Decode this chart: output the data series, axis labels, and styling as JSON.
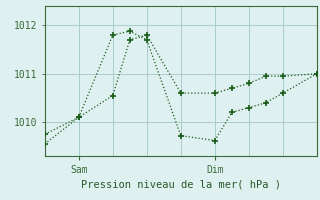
{
  "title": "",
  "xlabel": "Pression niveau de la mer( hPa )",
  "bg_color": "#dff0f0",
  "line_color": "#1a5c1a",
  "grid_color": "#aacccc",
  "axis_color": "#3a6a3a",
  "tick_label_color": "#2a5a2a",
  "ylim": [
    1009.3,
    1012.4
  ],
  "xlim": [
    0,
    16
  ],
  "yticks": [
    1010,
    1011,
    1012
  ],
  "ytick_labels": [
    "1010",
    "1011",
    "1012"
  ],
  "xtick_positions": [
    2,
    10
  ],
  "xtick_labels": [
    "Sam",
    "Dim"
  ],
  "series1_x": [
    0,
    2,
    4,
    5,
    6,
    8,
    10,
    11,
    12,
    13,
    14,
    16
  ],
  "series1_y": [
    1009.75,
    1010.1,
    1010.55,
    1011.7,
    1011.8,
    1010.6,
    1010.6,
    1010.7,
    1010.8,
    1010.95,
    1010.95,
    1011.0
  ],
  "series2_x": [
    0,
    2,
    4,
    5,
    6,
    8,
    10,
    11,
    12,
    13,
    14,
    16
  ],
  "series2_y": [
    1009.55,
    1010.1,
    1011.8,
    1011.88,
    1011.7,
    1009.72,
    1009.62,
    1010.2,
    1010.3,
    1010.4,
    1010.6,
    1011.0
  ],
  "grid_xticks": [
    0,
    2,
    4,
    6,
    8,
    10,
    12,
    14,
    16
  ],
  "fontsize_label": 7.5,
  "fontsize_tick": 7
}
